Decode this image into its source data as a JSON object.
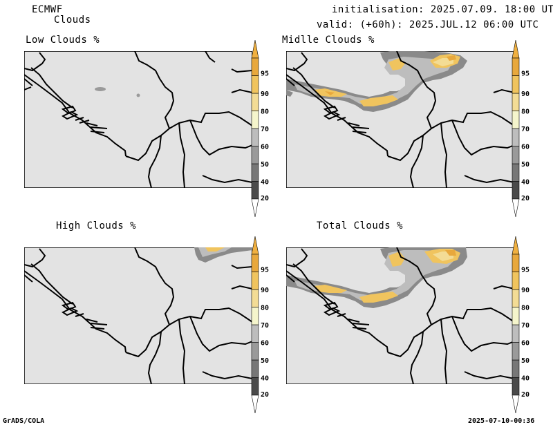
{
  "header": {
    "model": "ECMWF",
    "product": "Clouds",
    "initialisation": "initialisation: 2025.07.09. 18:00 UTC",
    "valid": "valid: (+60h): 2025.JUL.12 06:00 UTC"
  },
  "panels": [
    {
      "title": "Low Clouds %"
    },
    {
      "title": "Midlle Clouds %"
    },
    {
      "title": "High Clouds %"
    },
    {
      "title": "Total Clouds %"
    }
  ],
  "colorbar": {
    "levels": [
      "20",
      "40",
      "50",
      "60",
      "70",
      "80",
      "90",
      "95"
    ],
    "colors": {
      "under": "#ffffff",
      "c20": "#4a4a4a",
      "c40": "#777777",
      "c50": "#9a9a9a",
      "c60": "#bdbdbd",
      "c70": "#f5f5cc",
      "c80": "#f3dc95",
      "c90": "#f0c45e",
      "c95": "#e8a83c",
      "over": "#f0b040"
    }
  },
  "map_colors": {
    "background": "#e3e3e3",
    "border": "#000000"
  },
  "footer": {
    "left": "GrADS/COLA",
    "right": "2025-07-10-00:36"
  }
}
